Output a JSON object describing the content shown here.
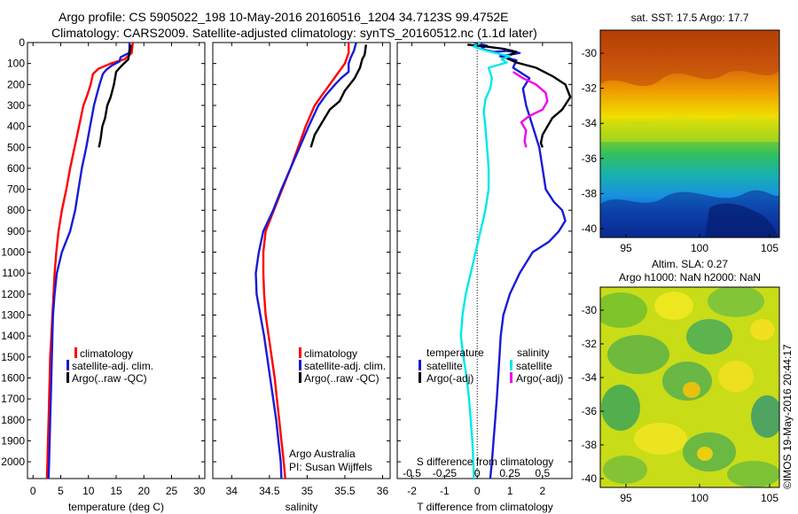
{
  "header": {
    "line1": "Argo profile: CS 5905022_198 10-May-2016 20160516_1204 34.7123S 99.4752E",
    "line2": "Climatology: CARS2009. Satellite-adjusted climatology: synTS_20160512.nc (1.1d later)"
  },
  "colors": {
    "climatology": "#ff0000",
    "satellite": "#1a1ad8",
    "argo": "#000000",
    "salinity_satellite": "#00e8e8",
    "salinity_argo": "#f000f0"
  },
  "chart_data": [
    {
      "type": "line",
      "id": "temperature",
      "xlabel": "temperature (deg C)",
      "xlim": [
        -1,
        31
      ],
      "ylim": [
        2080,
        0
      ],
      "xticks": [
        0,
        5,
        10,
        15,
        20,
        25,
        30
      ],
      "yticks": [
        0,
        100,
        200,
        300,
        400,
        500,
        600,
        700,
        800,
        900,
        1000,
        1100,
        1200,
        1300,
        1400,
        1500,
        1600,
        1700,
        1800,
        1900,
        2000
      ],
      "legend": [
        "climatology",
        "satellite-adj. clim.",
        "Argo(..raw -QC)"
      ],
      "series": [
        {
          "name": "climatology",
          "color": "#ff0000",
          "points": [
            [
              18,
              0
            ],
            [
              17.8,
              50
            ],
            [
              16.5,
              80
            ],
            [
              14,
              100
            ],
            [
              11.8,
              125
            ],
            [
              10.8,
              150
            ],
            [
              10.4,
              200
            ],
            [
              9.8,
              250
            ],
            [
              9.1,
              300
            ],
            [
              8.3,
              400
            ],
            [
              7.5,
              500
            ],
            [
              6.7,
              600
            ],
            [
              6,
              700
            ],
            [
              5.2,
              800
            ],
            [
              4.6,
              900
            ],
            [
              4.2,
              1000
            ],
            [
              3.9,
              1100
            ],
            [
              3.7,
              1200
            ],
            [
              3.5,
              1300
            ],
            [
              3.3,
              1400
            ],
            [
              3.1,
              1500
            ],
            [
              3,
              1600
            ],
            [
              2.9,
              1700
            ],
            [
              2.8,
              1800
            ],
            [
              2.7,
              1900
            ],
            [
              2.6,
              2000
            ],
            [
              2.5,
              2080
            ]
          ]
        },
        {
          "name": "satellite-adj. clim.",
          "color": "#1a1ad8",
          "points": [
            [
              17.4,
              0
            ],
            [
              17.4,
              30
            ],
            [
              17.3,
              50
            ],
            [
              15.8,
              70
            ],
            [
              15.6,
              90
            ],
            [
              14.2,
              110
            ],
            [
              13.2,
              130
            ],
            [
              12.6,
              150
            ],
            [
              12,
              200
            ],
            [
              11.5,
              250
            ],
            [
              11,
              300
            ],
            [
              10.3,
              400
            ],
            [
              9.6,
              500
            ],
            [
              8.8,
              600
            ],
            [
              8.2,
              700
            ],
            [
              7.6,
              800
            ],
            [
              6.7,
              900
            ],
            [
              5.2,
              1000
            ],
            [
              4.3,
              1100
            ],
            [
              3.9,
              1200
            ],
            [
              3.6,
              1300
            ],
            [
              3.5,
              1400
            ],
            [
              3.4,
              1500
            ],
            [
              3.3,
              1600
            ],
            [
              3.2,
              1700
            ],
            [
              3.1,
              1800
            ],
            [
              3,
              1900
            ],
            [
              2.9,
              2000
            ],
            [
              2.8,
              2080
            ]
          ]
        },
        {
          "name": "Argo(..raw -QC)",
          "color": "#000000",
          "points": [
            [
              17.6,
              10
            ],
            [
              17.5,
              40
            ],
            [
              17.3,
              60
            ],
            [
              17.2,
              80
            ],
            [
              16,
              110
            ],
            [
              15,
              140
            ],
            [
              14.6,
              200
            ],
            [
              14,
              260
            ],
            [
              13.4,
              300
            ],
            [
              13,
              360
            ],
            [
              12.5,
              400
            ],
            [
              12.2,
              460
            ],
            [
              11.9,
              500
            ]
          ]
        }
      ],
      "annotations": []
    },
    {
      "type": "line",
      "id": "salinity",
      "xlabel": "salinity",
      "xlim": [
        33.75,
        36.1
      ],
      "ylim": [
        2080,
        0
      ],
      "xticks": [
        34,
        34.5,
        35,
        35.5,
        36
      ],
      "legend": [
        "climatology",
        "satellite-adj. clim.",
        "Argo(..raw -QC)"
      ],
      "annotations": [
        "Argo Australia",
        "PI: Susan Wijffels"
      ],
      "series": [
        {
          "name": "climatology",
          "color": "#ff0000",
          "points": [
            [
              35.55,
              0
            ],
            [
              35.55,
              50
            ],
            [
              35.5,
              100
            ],
            [
              35.4,
              150
            ],
            [
              35.3,
              200
            ],
            [
              35.2,
              250
            ],
            [
              35.1,
              300
            ],
            [
              34.98,
              400
            ],
            [
              34.88,
              500
            ],
            [
              34.78,
              600
            ],
            [
              34.67,
              700
            ],
            [
              34.56,
              800
            ],
            [
              34.45,
              900
            ],
            [
              34.42,
              1000
            ],
            [
              34.42,
              1100
            ],
            [
              34.43,
              1200
            ],
            [
              34.45,
              1300
            ],
            [
              34.49,
              1400
            ],
            [
              34.53,
              1500
            ],
            [
              34.57,
              1600
            ],
            [
              34.6,
              1700
            ],
            [
              34.63,
              1800
            ],
            [
              34.66,
              1900
            ],
            [
              34.69,
              2000
            ],
            [
              34.71,
              2080
            ]
          ]
        },
        {
          "name": "satellite-adj. clim.",
          "color": "#1a1ad8",
          "points": [
            [
              35.65,
              0
            ],
            [
              35.62,
              40
            ],
            [
              35.58,
              70
            ],
            [
              35.55,
              100
            ],
            [
              35.55,
              140
            ],
            [
              35.45,
              170
            ],
            [
              35.37,
              200
            ],
            [
              35.25,
              250
            ],
            [
              35.15,
              300
            ],
            [
              35.02,
              400
            ],
            [
              34.9,
              500
            ],
            [
              34.78,
              600
            ],
            [
              34.66,
              700
            ],
            [
              34.55,
              800
            ],
            [
              34.42,
              900
            ],
            [
              34.36,
              1000
            ],
            [
              34.32,
              1100
            ],
            [
              34.33,
              1200
            ],
            [
              34.38,
              1300
            ],
            [
              34.43,
              1400
            ],
            [
              34.47,
              1500
            ],
            [
              34.51,
              1600
            ],
            [
              34.55,
              1700
            ],
            [
              34.59,
              1800
            ],
            [
              34.62,
              1900
            ],
            [
              34.65,
              2000
            ],
            [
              34.66,
              2080
            ]
          ]
        },
        {
          "name": "Argo(..raw -QC)",
          "color": "#000000",
          "points": [
            [
              35.78,
              10
            ],
            [
              35.77,
              40
            ],
            [
              35.76,
              60
            ],
            [
              35.73,
              80
            ],
            [
              35.7,
              120
            ],
            [
              35.63,
              170
            ],
            [
              35.5,
              230
            ],
            [
              35.43,
              280
            ],
            [
              35.3,
              320
            ],
            [
              35.2,
              380
            ],
            [
              35.1,
              440
            ],
            [
              35.05,
              500
            ]
          ]
        }
      ]
    },
    {
      "type": "line",
      "id": "difference",
      "xlabel": "T difference from climatology",
      "xlabel_top": "S difference from climatology",
      "xlim": [
        -2.45,
        2.9
      ],
      "ylim": [
        2080,
        0
      ],
      "xticks": [
        -2,
        -1,
        0,
        1,
        2
      ],
      "xticks_top": [
        {
          "label": "-0.5",
          "t": -2
        },
        {
          "label": "-0.25",
          "t": -1
        },
        {
          "label": "0",
          "t": 0
        },
        {
          "label": "0.25",
          "t": 1
        },
        {
          "label": "0.5",
          "t": 2
        }
      ],
      "zero_line": true,
      "legend": {
        "temperature_title": "temperature",
        "salinity_title": "salinity",
        "items": [
          {
            "label": "satellite",
            "color": "#1a1ad8"
          },
          {
            "label": "Argo(-adj)",
            "color": "#000000"
          },
          {
            "label": "satellite",
            "color": "#00e8e8"
          },
          {
            "label": "Argo(-adj)",
            "color": "#f000f0"
          }
        ]
      },
      "series": [
        {
          "name": "temperature satellite",
          "color": "#1a1ad8",
          "points": [
            [
              -0.1,
              0
            ],
            [
              0.3,
              15
            ],
            [
              0.1,
              30
            ],
            [
              0.5,
              45
            ],
            [
              0.9,
              40
            ],
            [
              1.3,
              50
            ],
            [
              0.7,
              65
            ],
            [
              1.2,
              85
            ],
            [
              1.1,
              120
            ],
            [
              1.6,
              170
            ],
            [
              1.4,
              220
            ],
            [
              1.5,
              300
            ],
            [
              1.7,
              400
            ],
            [
              1.9,
              500
            ],
            [
              2,
              600
            ],
            [
              2.1,
              700
            ],
            [
              2.35,
              760
            ],
            [
              2.6,
              800
            ],
            [
              2.7,
              850
            ],
            [
              2.5,
              900
            ],
            [
              2.2,
              950
            ],
            [
              1.7,
              1000
            ],
            [
              1.3,
              1100
            ],
            [
              1,
              1200
            ],
            [
              0.8,
              1300
            ],
            [
              0.72,
              1400
            ],
            [
              0.68,
              1500
            ],
            [
              0.64,
              1600
            ],
            [
              0.6,
              1700
            ],
            [
              0.55,
              1800
            ],
            [
              0.5,
              1900
            ],
            [
              0.45,
              2000
            ],
            [
              0.4,
              2080
            ]
          ]
        },
        {
          "name": "temperature Argo(-adj)",
          "color": "#000000",
          "points": [
            [
              -0.3,
              10
            ],
            [
              0.3,
              20
            ],
            [
              0.8,
              30
            ],
            [
              1.2,
              45
            ],
            [
              1.0,
              60
            ],
            [
              0.9,
              75
            ],
            [
              1.2,
              95
            ],
            [
              1.8,
              120
            ],
            [
              2.3,
              160
            ],
            [
              2.7,
              200
            ],
            [
              2.85,
              260
            ],
            [
              2.6,
              320
            ],
            [
              2.3,
              360
            ],
            [
              2.15,
              400
            ],
            [
              2.0,
              440
            ],
            [
              1.95,
              480
            ],
            [
              2.0,
              500
            ]
          ]
        },
        {
          "name": "salinity satellite",
          "color": "#00e8e8",
          "points": [
            [
              0.1,
              0
            ],
            [
              -0.1,
              20
            ],
            [
              0.3,
              40
            ],
            [
              0.7,
              55
            ],
            [
              1.0,
              65
            ],
            [
              0.75,
              80
            ],
            [
              0.9,
              95
            ],
            [
              0.35,
              120
            ],
            [
              0.45,
              170
            ],
            [
              0.4,
              220
            ],
            [
              0.25,
              270
            ],
            [
              0.2,
              330
            ],
            [
              0.25,
              400
            ],
            [
              0.3,
              500
            ],
            [
              0.35,
              600
            ],
            [
              0.35,
              700
            ],
            [
              0.25,
              800
            ],
            [
              0.1,
              900
            ],
            [
              -0.05,
              1000
            ],
            [
              -0.2,
              1100
            ],
            [
              -0.35,
              1200
            ],
            [
              -0.45,
              1300
            ],
            [
              -0.5,
              1400
            ],
            [
              -0.42,
              1500
            ],
            [
              -0.32,
              1600
            ],
            [
              -0.25,
              1700
            ],
            [
              -0.2,
              1800
            ],
            [
              -0.15,
              1900
            ],
            [
              -0.12,
              2000
            ],
            [
              -0.1,
              2080
            ]
          ]
        },
        {
          "name": "salinity Argo(-adj)",
          "color": "#f000f0",
          "points": [
            [
              1.1,
              140
            ],
            [
              1.4,
              170
            ],
            [
              1.8,
              200
            ],
            [
              2.1,
              240
            ],
            [
              2.15,
              280
            ],
            [
              2.0,
              320
            ],
            [
              1.6,
              350
            ],
            [
              1.35,
              380
            ],
            [
              1.5,
              420
            ],
            [
              1.45,
              470
            ],
            [
              1.5,
              500
            ]
          ]
        }
      ]
    }
  ],
  "maps": {
    "sst": {
      "title": "sat. SST: 17.5 Argo: 17.7",
      "yticks": [
        "-30",
        "-32",
        "-34",
        "-36",
        "-38",
        "-40"
      ],
      "xticks": [
        "95",
        "100",
        "105"
      ]
    },
    "sla": {
      "title_line1": "Altim. SLA: 0.27",
      "title_line2": "Argo h1000: NaN h2000: NaN",
      "yticks": [
        "-30",
        "-32",
        "-34",
        "-36",
        "-38",
        "-40"
      ],
      "xticks": [
        "95",
        "100",
        "105"
      ]
    }
  },
  "footer": {
    "credit": "©IMOS 19-May-2016 20:44:17"
  }
}
